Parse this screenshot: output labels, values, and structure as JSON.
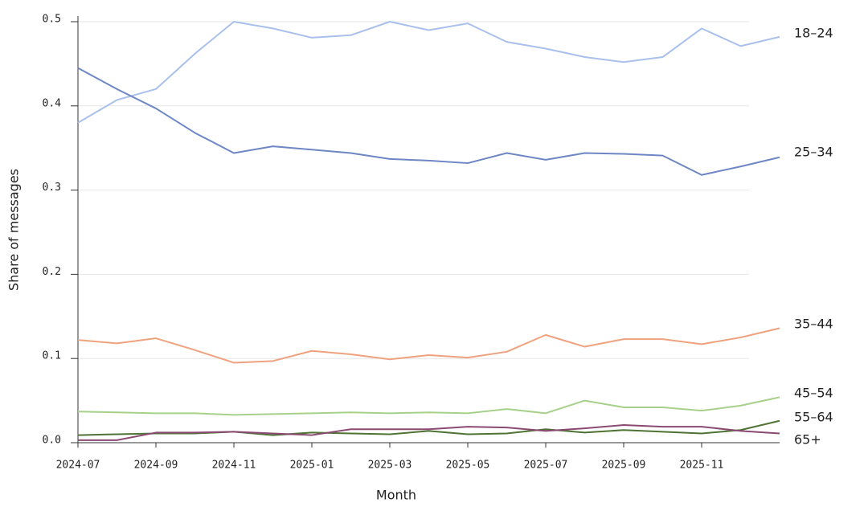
{
  "chart_data": {
    "type": "line",
    "x_label": "Month",
    "y_label": "Share of messages",
    "categories": [
      "2024-07",
      null,
      "2024-09",
      null,
      "2024-11",
      null,
      "2025-01",
      null,
      "2025-03",
      null,
      "2025-05",
      null,
      "2025-07",
      null,
      "2025-09",
      null,
      "2025-11",
      null,
      null
    ],
    "series": [
      {
        "name": "18–24",
        "color": "#a9c0ec",
        "values": [
          0.38,
          0.407,
          0.42,
          0.462,
          0.5,
          0.492,
          0.481,
          0.484,
          0.5,
          0.49,
          0.498,
          0.476,
          0.468,
          0.458,
          0.452,
          0.458,
          0.492,
          0.471,
          0.482
        ]
      },
      {
        "name": "25–34",
        "color": "#6d86c4",
        "values": [
          0.445,
          0.42,
          0.397,
          0.368,
          0.344,
          0.352,
          0.348,
          0.344,
          0.337,
          0.335,
          0.332,
          0.344,
          0.336,
          0.344,
          0.343,
          0.341,
          0.318,
          0.328,
          0.339
        ]
      },
      {
        "name": "35–44",
        "color": "#eea27e",
        "values": [
          0.122,
          0.118,
          0.124,
          0.11,
          0.095,
          0.097,
          0.109,
          0.105,
          0.099,
          0.104,
          0.101,
          0.108,
          0.128,
          0.114,
          0.123,
          0.123,
          0.117,
          0.125,
          0.136
        ]
      },
      {
        "name": "45–54",
        "color": "#a7d18b",
        "values": [
          0.037,
          0.036,
          0.035,
          0.035,
          0.033,
          0.034,
          0.035,
          0.036,
          0.035,
          0.036,
          0.035,
          0.04,
          0.035,
          0.05,
          0.042,
          0.042,
          0.038,
          0.044,
          0.054
        ]
      },
      {
        "name": "55–64",
        "color": "#4f7335",
        "values": [
          0.009,
          0.01,
          0.011,
          0.011,
          0.013,
          0.009,
          0.012,
          0.011,
          0.01,
          0.014,
          0.01,
          0.011,
          0.016,
          0.012,
          0.015,
          0.013,
          0.011,
          0.015,
          0.026
        ]
      },
      {
        "name": "65+",
        "color": "#8a4a72",
        "values": [
          0.003,
          0.003,
          0.012,
          0.012,
          0.013,
          0.011,
          0.009,
          0.016,
          0.016,
          0.016,
          0.019,
          0.018,
          0.014,
          0.017,
          0.021,
          0.019,
          0.019,
          0.014,
          0.011
        ]
      }
    ],
    "ylim": [
      0,
      0.5
    ],
    "yticks": [
      {
        "value": 0,
        "label": "0.0"
      },
      0.1,
      0.2,
      0.3,
      0.4,
      0.5
    ],
    "grid": true
  }
}
